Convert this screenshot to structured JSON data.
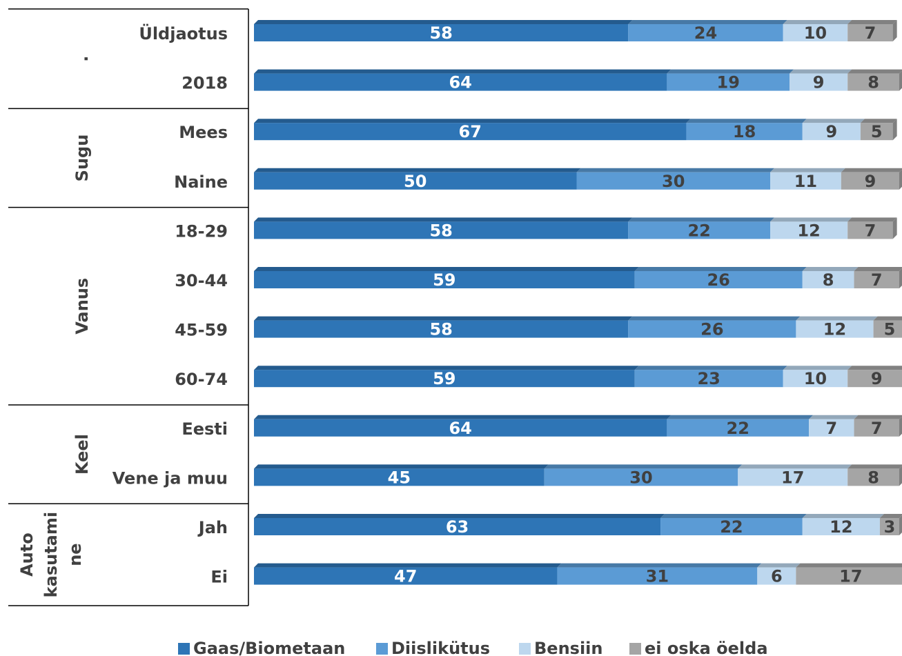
{
  "chart_data": {
    "type": "stacked-barh",
    "groups": [
      {
        "label": [
          "."
        ],
        "categories": [
          "Üldjaotus",
          "2018"
        ]
      },
      {
        "label": [
          "Sugu"
        ],
        "categories": [
          "Mees",
          "Naine"
        ]
      },
      {
        "label": [
          "Vanus"
        ],
        "categories": [
          "18-29",
          "30-44",
          "45-59",
          "60-74"
        ]
      },
      {
        "label": [
          "Keel"
        ],
        "categories": [
          "Eesti",
          "Vene ja muu"
        ]
      },
      {
        "label": [
          "Auto",
          "kasutami",
          "ne"
        ],
        "categories": [
          "Jah",
          "Ei"
        ]
      }
    ],
    "series": [
      {
        "name": "Gaas/Biometaan",
        "color": "#2e75b6",
        "label_color": "#ffffff",
        "values": [
          58,
          64,
          67,
          50,
          58,
          59,
          58,
          59,
          64,
          45,
          63,
          47
        ]
      },
      {
        "name": "Diislikütus",
        "color": "#5b9bd5",
        "label_color": "#404040",
        "values": [
          24,
          19,
          18,
          30,
          22,
          26,
          26,
          23,
          22,
          30,
          22,
          31
        ]
      },
      {
        "name": "Bensiin",
        "color": "#bdd7ee",
        "label_color": "#404040",
        "values": [
          10,
          9,
          9,
          11,
          12,
          8,
          12,
          10,
          7,
          17,
          12,
          6
        ]
      },
      {
        "name": "ei oska öelda",
        "color": "#a5a5a5",
        "label_color": "#404040",
        "values": [
          7,
          8,
          5,
          9,
          7,
          7,
          5,
          9,
          7,
          8,
          3,
          17
        ]
      }
    ],
    "xlim": [
      0,
      100
    ]
  }
}
